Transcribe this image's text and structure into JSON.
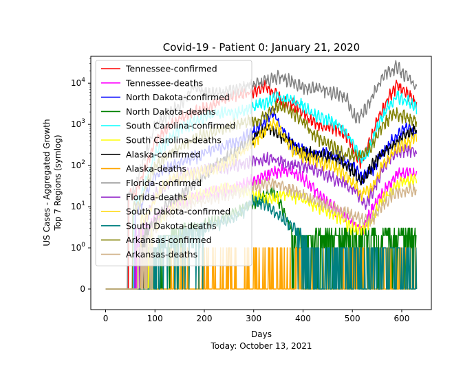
{
  "chart_data": {
    "type": "line",
    "title": "Covid-19 - Patient 0: January 21, 2020",
    "xlabel": "Days",
    "xlabel_sub": "Today: October 13, 2021",
    "ylabel_line1": "US Cases - Aggregated Growth",
    "ylabel_line2": "Top 7 Regions (symlog)",
    "yscale": "symlog",
    "xlim": [
      -30,
      660
    ],
    "ylim": [
      -0.5,
      45000
    ],
    "x_ticks": [
      0,
      100,
      200,
      300,
      400,
      500,
      600
    ],
    "y_ticks": [
      {
        "value": 0,
        "label": "0"
      },
      {
        "value": 1,
        "label": "10^0"
      },
      {
        "value": 10,
        "label": "10^1"
      },
      {
        "value": 100,
        "label": "10^2"
      },
      {
        "value": 1000,
        "label": "10^3"
      },
      {
        "value": 10000,
        "label": "10^4"
      }
    ],
    "legend_position": "upper left",
    "series": [
      {
        "name": "Tennessee-confirmed",
        "color": "#ff0000",
        "style": "confirmed",
        "start": 47,
        "points": [
          [
            60,
            20
          ],
          [
            100,
            400
          ],
          [
            150,
            1500
          ],
          [
            200,
            2500
          ],
          [
            230,
            3500
          ],
          [
            260,
            5000
          ],
          [
            290,
            6000
          ],
          [
            310,
            7000
          ],
          [
            320,
            9000
          ],
          [
            340,
            6000
          ],
          [
            360,
            3500
          ],
          [
            380,
            3000
          ],
          [
            400,
            2000
          ],
          [
            420,
            1200
          ],
          [
            440,
            900
          ],
          [
            470,
            800
          ],
          [
            490,
            500
          ],
          [
            500,
            300
          ],
          [
            510,
            150
          ],
          [
            520,
            120
          ],
          [
            530,
            250
          ],
          [
            550,
            1200
          ],
          [
            570,
            4000
          ],
          [
            590,
            9000
          ],
          [
            610,
            6000
          ],
          [
            630,
            3000
          ]
        ]
      },
      {
        "name": "Tennessee-deaths",
        "color": "#ff00ff",
        "style": "deaths",
        "start": 62,
        "points": [
          [
            70,
            2
          ],
          [
            100,
            5
          ],
          [
            150,
            15
          ],
          [
            200,
            20
          ],
          [
            240,
            25
          ],
          [
            280,
            35
          ],
          [
            300,
            45
          ],
          [
            330,
            60
          ],
          [
            360,
            80
          ],
          [
            380,
            70
          ],
          [
            400,
            50
          ],
          [
            420,
            30
          ],
          [
            440,
            15
          ],
          [
            460,
            10
          ],
          [
            480,
            7
          ],
          [
            500,
            4
          ],
          [
            520,
            3
          ],
          [
            530,
            5
          ],
          [
            550,
            15
          ],
          [
            570,
            30
          ],
          [
            590,
            60
          ],
          [
            610,
            70
          ],
          [
            630,
            60
          ]
        ]
      },
      {
        "name": "North Dakota-confirmed",
        "color": "#0000ff",
        "style": "confirmed",
        "start": 60,
        "points": [
          [
            70,
            10
          ],
          [
            100,
            60
          ],
          [
            150,
            120
          ],
          [
            200,
            200
          ],
          [
            240,
            300
          ],
          [
            270,
            400
          ],
          [
            290,
            600
          ],
          [
            310,
            800
          ],
          [
            330,
            1500
          ],
          [
            340,
            2000
          ],
          [
            350,
            1200
          ],
          [
            360,
            700
          ],
          [
            380,
            300
          ],
          [
            400,
            250
          ],
          [
            420,
            180
          ],
          [
            440,
            200
          ],
          [
            460,
            180
          ],
          [
            480,
            150
          ],
          [
            500,
            100
          ],
          [
            520,
            50
          ],
          [
            540,
            80
          ],
          [
            560,
            200
          ],
          [
            580,
            400
          ],
          [
            600,
            700
          ],
          [
            610,
            900
          ],
          [
            630,
            600
          ]
        ]
      },
      {
        "name": "North Dakota-deaths",
        "color": "#008000",
        "style": "deaths",
        "start": 85,
        "points": [
          [
            95,
            1
          ],
          [
            130,
            2
          ],
          [
            180,
            3
          ],
          [
            230,
            5
          ],
          [
            270,
            8
          ],
          [
            300,
            12
          ],
          [
            320,
            18
          ],
          [
            340,
            25
          ],
          [
            350,
            15
          ],
          [
            360,
            8
          ],
          [
            370,
            4
          ],
          [
            380,
            2
          ]
        ]
      },
      {
        "name": "South Carolina-confirmed",
        "color": "#00ffff",
        "style": "confirmed",
        "start": 57,
        "points": [
          [
            70,
            15
          ],
          [
            100,
            200
          ],
          [
            150,
            800
          ],
          [
            200,
            1500
          ],
          [
            230,
            2000
          ],
          [
            260,
            1800
          ],
          [
            290,
            2500
          ],
          [
            310,
            3000
          ],
          [
            330,
            3500
          ],
          [
            350,
            5000
          ],
          [
            370,
            4000
          ],
          [
            400,
            3000
          ],
          [
            420,
            1800
          ],
          [
            440,
            1500
          ],
          [
            460,
            1200
          ],
          [
            480,
            800
          ],
          [
            500,
            400
          ],
          [
            510,
            200
          ],
          [
            520,
            150
          ],
          [
            530,
            200
          ],
          [
            550,
            800
          ],
          [
            570,
            2500
          ],
          [
            590,
            5000
          ],
          [
            610,
            4000
          ],
          [
            630,
            2500
          ]
        ]
      },
      {
        "name": "South Carolina-deaths",
        "color": "#ffff00",
        "style": "deaths",
        "start": 67,
        "points": [
          [
            80,
            1
          ],
          [
            110,
            5
          ],
          [
            150,
            15
          ],
          [
            200,
            20
          ],
          [
            250,
            30
          ],
          [
            280,
            25
          ],
          [
            300,
            20
          ],
          [
            330,
            15
          ],
          [
            360,
            20
          ],
          [
            390,
            18
          ],
          [
            420,
            12
          ],
          [
            450,
            8
          ],
          [
            480,
            5
          ],
          [
            500,
            3
          ],
          [
            520,
            3
          ],
          [
            540,
            5
          ],
          [
            560,
            15
          ],
          [
            580,
            25
          ],
          [
            600,
            40
          ],
          [
            630,
            50
          ]
        ]
      },
      {
        "name": "Alaska-confirmed",
        "color": "#000000",
        "style": "confirmed",
        "start": 72,
        "points": [
          [
            80,
            2
          ],
          [
            120,
            10
          ],
          [
            170,
            30
          ],
          [
            220,
            100
          ],
          [
            260,
            200
          ],
          [
            290,
            400
          ],
          [
            310,
            600
          ],
          [
            330,
            800
          ],
          [
            350,
            600
          ],
          [
            370,
            400
          ],
          [
            390,
            250
          ],
          [
            410,
            200
          ],
          [
            440,
            180
          ],
          [
            460,
            150
          ],
          [
            480,
            120
          ],
          [
            500,
            80
          ],
          [
            510,
            50
          ],
          [
            520,
            40
          ],
          [
            540,
            100
          ],
          [
            560,
            200
          ],
          [
            580,
            300
          ],
          [
            600,
            500
          ],
          [
            620,
            700
          ],
          [
            630,
            800
          ]
        ]
      },
      {
        "name": "Alaska-deaths",
        "color": "#ffa500",
        "style": "deaths",
        "start": 125,
        "points": [
          [
            130,
            0
          ],
          [
            630,
            0
          ]
        ]
      },
      {
        "name": "Florida-confirmed",
        "color": "#808080",
        "style": "confirmed",
        "start": 45,
        "points": [
          [
            55,
            20
          ],
          [
            100,
            1000
          ],
          [
            150,
            3000
          ],
          [
            180,
            9000
          ],
          [
            200,
            6000
          ],
          [
            230,
            6000
          ],
          [
            260,
            7000
          ],
          [
            290,
            9000
          ],
          [
            310,
            10000
          ],
          [
            330,
            12000
          ],
          [
            350,
            15000
          ],
          [
            370,
            12000
          ],
          [
            390,
            9000
          ],
          [
            410,
            8000
          ],
          [
            440,
            7000
          ],
          [
            460,
            6000
          ],
          [
            480,
            5000
          ],
          [
            490,
            4000
          ],
          [
            500,
            2000
          ],
          [
            510,
            1500
          ],
          [
            520,
            1800
          ],
          [
            530,
            3000
          ],
          [
            550,
            8000
          ],
          [
            570,
            18000
          ],
          [
            590,
            25000
          ],
          [
            610,
            15000
          ],
          [
            630,
            8000
          ]
        ]
      },
      {
        "name": "Florida-deaths",
        "color": "#9932cc",
        "style": "deaths",
        "start": 58,
        "points": [
          [
            70,
            2
          ],
          [
            100,
            20
          ],
          [
            150,
            60
          ],
          [
            200,
            80
          ],
          [
            250,
            100
          ],
          [
            280,
            120
          ],
          [
            300,
            130
          ],
          [
            330,
            150
          ],
          [
            360,
            120
          ],
          [
            380,
            100
          ],
          [
            400,
            100
          ],
          [
            420,
            90
          ],
          [
            440,
            70
          ],
          [
            460,
            50
          ],
          [
            480,
            40
          ],
          [
            500,
            30
          ],
          [
            520,
            15
          ],
          [
            530,
            12
          ],
          [
            550,
            40
          ],
          [
            570,
            120
          ],
          [
            590,
            220
          ],
          [
            610,
            250
          ],
          [
            630,
            200
          ]
        ]
      },
      {
        "name": "South Dakota-confirmed",
        "color": "#ffd700",
        "style": "confirmed",
        "start": 72,
        "points": [
          [
            80,
            5
          ],
          [
            120,
            40
          ],
          [
            170,
            60
          ],
          [
            220,
            80
          ],
          [
            260,
            150
          ],
          [
            290,
            300
          ],
          [
            310,
            500
          ],
          [
            330,
            900
          ],
          [
            345,
            1100
          ],
          [
            360,
            500
          ],
          [
            380,
            250
          ],
          [
            400,
            180
          ],
          [
            420,
            150
          ],
          [
            440,
            120
          ],
          [
            460,
            100
          ],
          [
            480,
            70
          ],
          [
            500,
            40
          ],
          [
            520,
            20
          ],
          [
            540,
            30
          ],
          [
            560,
            100
          ],
          [
            580,
            200
          ],
          [
            600,
            300
          ],
          [
            630,
            500
          ]
        ]
      },
      {
        "name": "South Dakota-deaths",
        "color": "#008080",
        "style": "deaths",
        "start": 90,
        "points": [
          [
            100,
            1
          ],
          [
            150,
            2
          ],
          [
            200,
            3
          ],
          [
            250,
            5
          ],
          [
            280,
            8
          ],
          [
            300,
            15
          ],
          [
            320,
            12
          ],
          [
            340,
            8
          ],
          [
            360,
            5
          ],
          [
            380,
            3
          ],
          [
            400,
            2
          ],
          [
            420,
            1
          ]
        ]
      },
      {
        "name": "Arkansas-confirmed",
        "color": "#808000",
        "style": "confirmed",
        "start": 55,
        "points": [
          [
            65,
            10
          ],
          [
            100,
            100
          ],
          [
            150,
            300
          ],
          [
            200,
            600
          ],
          [
            250,
            900
          ],
          [
            290,
            1200
          ],
          [
            310,
            1300
          ],
          [
            330,
            1800
          ],
          [
            350,
            3000
          ],
          [
            365,
            2500
          ],
          [
            380,
            1800
          ],
          [
            400,
            1200
          ],
          [
            420,
            600
          ],
          [
            440,
            400
          ],
          [
            460,
            300
          ],
          [
            480,
            200
          ],
          [
            500,
            180
          ],
          [
            520,
            180
          ],
          [
            540,
            300
          ],
          [
            560,
            900
          ],
          [
            580,
            1800
          ],
          [
            600,
            1700
          ],
          [
            630,
            1200
          ]
        ]
      },
      {
        "name": "Arkansas-deaths",
        "color": "#d2b48c",
        "style": "deaths",
        "start": 65,
        "points": [
          [
            75,
            1
          ],
          [
            110,
            5
          ],
          [
            150,
            10
          ],
          [
            200,
            15
          ],
          [
            250,
            20
          ],
          [
            280,
            25
          ],
          [
            300,
            30
          ],
          [
            320,
            35
          ],
          [
            340,
            40
          ],
          [
            360,
            30
          ],
          [
            380,
            25
          ],
          [
            400,
            20
          ],
          [
            420,
            15
          ],
          [
            440,
            12
          ],
          [
            460,
            10
          ],
          [
            480,
            8
          ],
          [
            500,
            6
          ],
          [
            520,
            5
          ],
          [
            540,
            5
          ],
          [
            560,
            10
          ],
          [
            580,
            20
          ],
          [
            600,
            25
          ],
          [
            630,
            25
          ]
        ]
      }
    ]
  }
}
